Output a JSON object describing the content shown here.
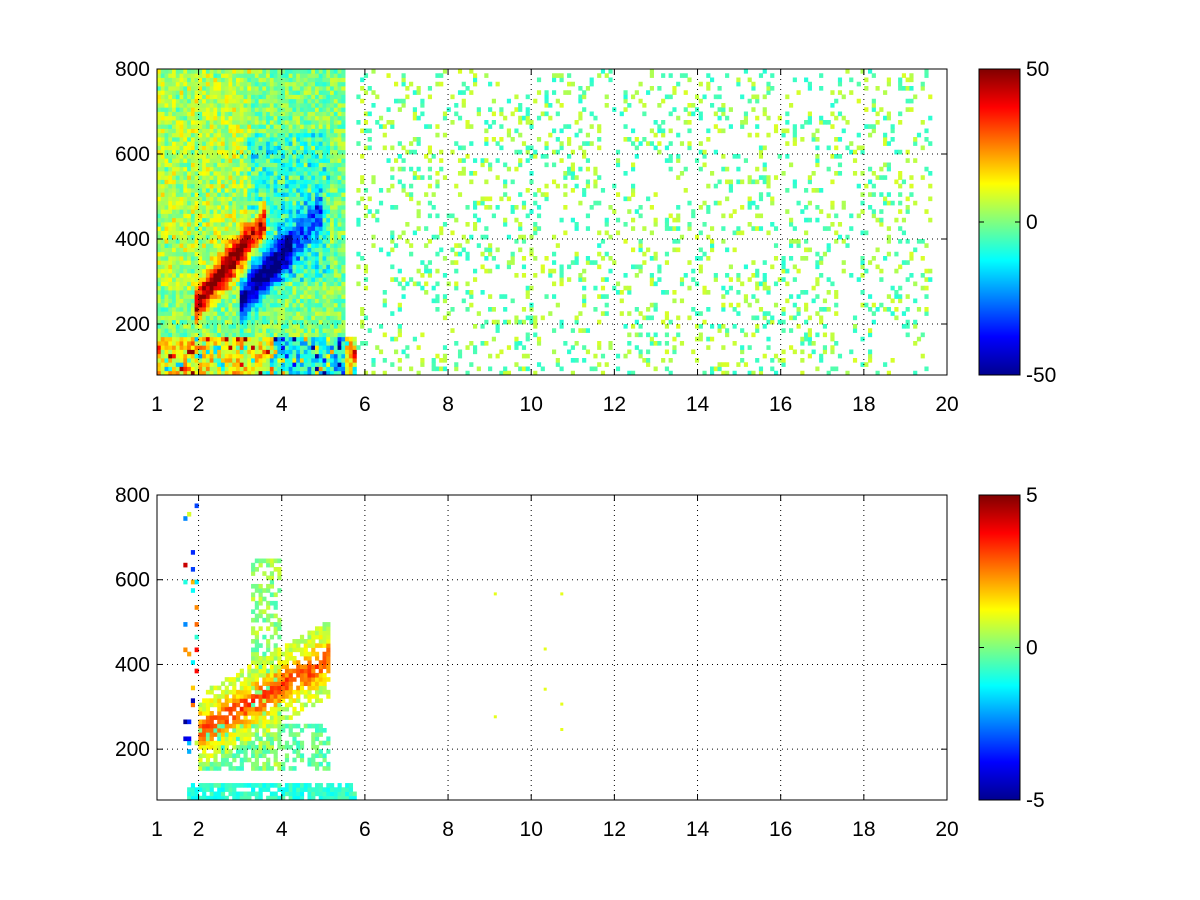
{
  "chart_data": [
    {
      "type": "heatmap",
      "title": "",
      "xlabel": "",
      "ylabel": "",
      "xlim": [
        1,
        20
      ],
      "ylim": [
        80,
        800
      ],
      "x_ticks": [
        1,
        2,
        4,
        6,
        8,
        10,
        12,
        14,
        16,
        18,
        20
      ],
      "x_tick_labels": [
        "1",
        "2",
        "4",
        "6",
        "8",
        "10",
        "12",
        "14",
        "16",
        "18",
        "20"
      ],
      "y_ticks": [
        200,
        400,
        600,
        800
      ],
      "y_tick_labels": [
        "200",
        "400",
        "600",
        "800"
      ],
      "grid": true,
      "colormap": "jet",
      "clim": [
        -50,
        50
      ],
      "colorbar": {
        "placement": "right",
        "tick_values": [
          50,
          0,
          -50
        ],
        "tick_labels": [
          "50",
          "0",
          "-50"
        ]
      },
      "features": [
        {
          "description_values": "positive ridge",
          "x_range": [
            1.9,
            3.5
          ],
          "y_center_start": 240,
          "y_center_end": 420,
          "peak": 45
        },
        {
          "description_values": "negative ridge",
          "x_range": [
            3.0,
            5.0
          ],
          "y_center_start": 260,
          "y_center_end": 470,
          "peak": -45
        },
        {
          "description_values": "low band",
          "x_range": [
            1.0,
            5.8
          ],
          "y_range": [
            80,
            170
          ],
          "peak": 40
        },
        {
          "description_values": "sparse noise",
          "x_range": [
            6,
            19.5
          ],
          "amplitude": 8
        }
      ]
    },
    {
      "type": "heatmap",
      "title": "",
      "xlabel": "",
      "ylabel": "",
      "xlim": [
        1,
        20
      ],
      "ylim": [
        80,
        800
      ],
      "x_ticks": [
        1,
        2,
        4,
        6,
        8,
        10,
        12,
        14,
        16,
        18,
        20
      ],
      "x_tick_labels": [
        "1",
        "2",
        "4",
        "6",
        "8",
        "10",
        "12",
        "14",
        "16",
        "18",
        "20"
      ],
      "y_ticks": [
        200,
        400,
        600,
        800
      ],
      "y_tick_labels": [
        "200",
        "400",
        "600",
        "800"
      ],
      "grid": true,
      "colormap": "jet",
      "clim": [
        -5,
        5
      ],
      "colorbar": {
        "placement": "right",
        "tick_values": [
          5,
          0,
          -5
        ],
        "tick_labels": [
          "5",
          "0",
          "-5"
        ]
      },
      "features": [
        {
          "description_values": "positive ridge",
          "x_range": [
            2.0,
            5.2
          ],
          "y_center_start": 240,
          "y_center_end": 420,
          "peak": 3
        },
        {
          "description_values": "low band",
          "x_range": [
            1.5,
            5.8
          ],
          "y_range": [
            80,
            120
          ],
          "peak": -1
        },
        {
          "description_values": "isolated points",
          "points": [
            [
              9.1,
              570
            ],
            [
              10.3,
              440
            ],
            [
              10.3,
              345
            ],
            [
              10.7,
              310
            ],
            [
              10.7,
              570
            ],
            [
              10.7,
              250
            ],
            [
              9.1,
              280
            ]
          ]
        }
      ]
    }
  ]
}
